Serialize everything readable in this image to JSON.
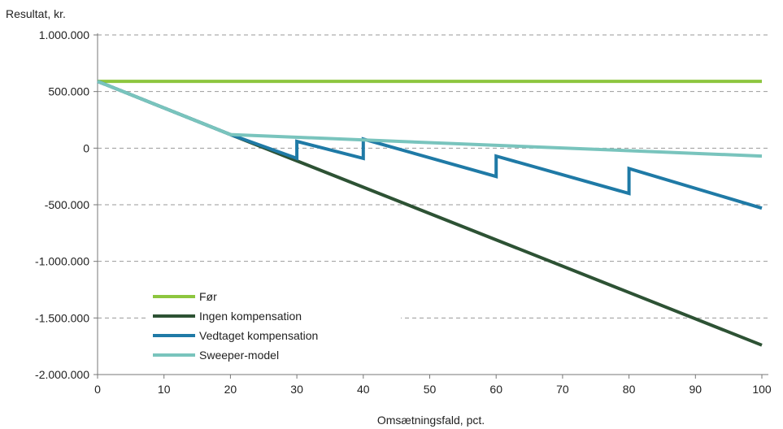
{
  "chart_data": {
    "type": "line",
    "title": "",
    "ylabel": "Resultat, kr.",
    "xlabel": "Omsætningsfald, pct.",
    "xlim": [
      0,
      100
    ],
    "ylim": [
      -2000000,
      1000000
    ],
    "x_ticks": [
      0,
      10,
      20,
      30,
      40,
      50,
      60,
      70,
      80,
      90,
      100
    ],
    "x_tick_labels": [
      "0",
      "10",
      "20",
      "30",
      "40",
      "50",
      "60",
      "70",
      "80",
      "90",
      "100"
    ],
    "y_ticks": [
      1000000,
      500000,
      0,
      -500000,
      -1000000,
      -1500000,
      -2000000
    ],
    "y_tick_labels": [
      "1.000.000",
      "500.000",
      "0",
      "-500.000",
      "-1.000.000",
      "-1.500.000",
      "-2.000.000"
    ],
    "grid": "horizontal dashed",
    "legend_position": "bottom-left",
    "series": [
      {
        "name": "Før",
        "color": "#8dc63f",
        "points": [
          [
            0,
            590000
          ],
          [
            100,
            590000
          ]
        ]
      },
      {
        "name": "Ingen kompensation",
        "color": "#2d5234",
        "points": [
          [
            0,
            590000
          ],
          [
            20,
            120000
          ],
          [
            100,
            -1740000
          ]
        ]
      },
      {
        "name": "Vedtaget kompensation",
        "color": "#1f7aa6",
        "points": [
          [
            0,
            590000
          ],
          [
            20,
            120000
          ],
          [
            30,
            -90000
          ],
          [
            30,
            60000
          ],
          [
            40,
            -90000
          ],
          [
            40,
            80000
          ],
          [
            60,
            -250000
          ],
          [
            60,
            -70000
          ],
          [
            80,
            -400000
          ],
          [
            80,
            -180000
          ],
          [
            100,
            -530000
          ]
        ]
      },
      {
        "name": "Sweeper-model",
        "color": "#79c4bd",
        "points": [
          [
            0,
            590000
          ],
          [
            20,
            120000
          ],
          [
            100,
            -70000
          ]
        ]
      }
    ]
  }
}
